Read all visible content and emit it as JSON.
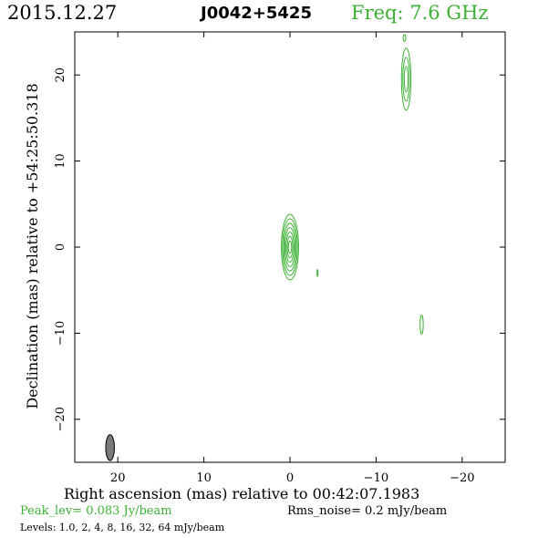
{
  "header": {
    "date": "2015.12.27",
    "source": "J0042+5425",
    "freq": "Freq: 7.6 GHz"
  },
  "footer": {
    "xlabel": "Right ascension (mas) relative to 00:42:07.1983",
    "peak": "Peak_lev=  0.083 Jy/beam",
    "rms": "Rms_noise=  0.2 mJy/beam",
    "levels": "Levels: 1.0,   2,   4,   8,  16,  32,  64 mJy/beam"
  },
  "axes": {
    "ylabel": "Declination (mas) relative to +54:25:50.318",
    "x_range": [
      25,
      -25
    ],
    "y_range": [
      -25,
      25
    ],
    "x_ticks": [
      20,
      10,
      0,
      -10,
      -20
    ],
    "y_ticks": [
      20,
      10,
      0,
      -10,
      -20
    ],
    "x_tick_labels": [
      "20",
      "10",
      "0",
      "−10",
      "−20"
    ],
    "y_tick_labels": [
      "20",
      "10",
      "0",
      "−10",
      "−20"
    ]
  },
  "colors": {
    "contour": "#3cb034",
    "beam": "#7a7a7a",
    "frame": "#000000"
  },
  "map": {
    "core": {
      "x": 0.0,
      "y": 0.0,
      "semi_major": 3.8,
      "semi_minor": 1.0,
      "levels": 7
    },
    "knots": [
      {
        "x": -13.5,
        "y": 19.5,
        "semi_major": 3.6,
        "semi_minor": 0.55,
        "levels": 3
      },
      {
        "x": -13.3,
        "y": 24.3,
        "semi_major": 0.4,
        "semi_minor": 0.15,
        "levels": 1
      },
      {
        "x": -15.3,
        "y": -9.0,
        "semi_major": 1.1,
        "semi_minor": 0.18,
        "levels": 1
      },
      {
        "x": -3.2,
        "y": -3.0,
        "semi_major": 0.4,
        "semi_minor": 0.05,
        "levels": 1
      }
    ],
    "beam": {
      "x": 20.9,
      "y": -23.3,
      "semi_major": 1.5,
      "semi_minor": 0.5
    }
  }
}
